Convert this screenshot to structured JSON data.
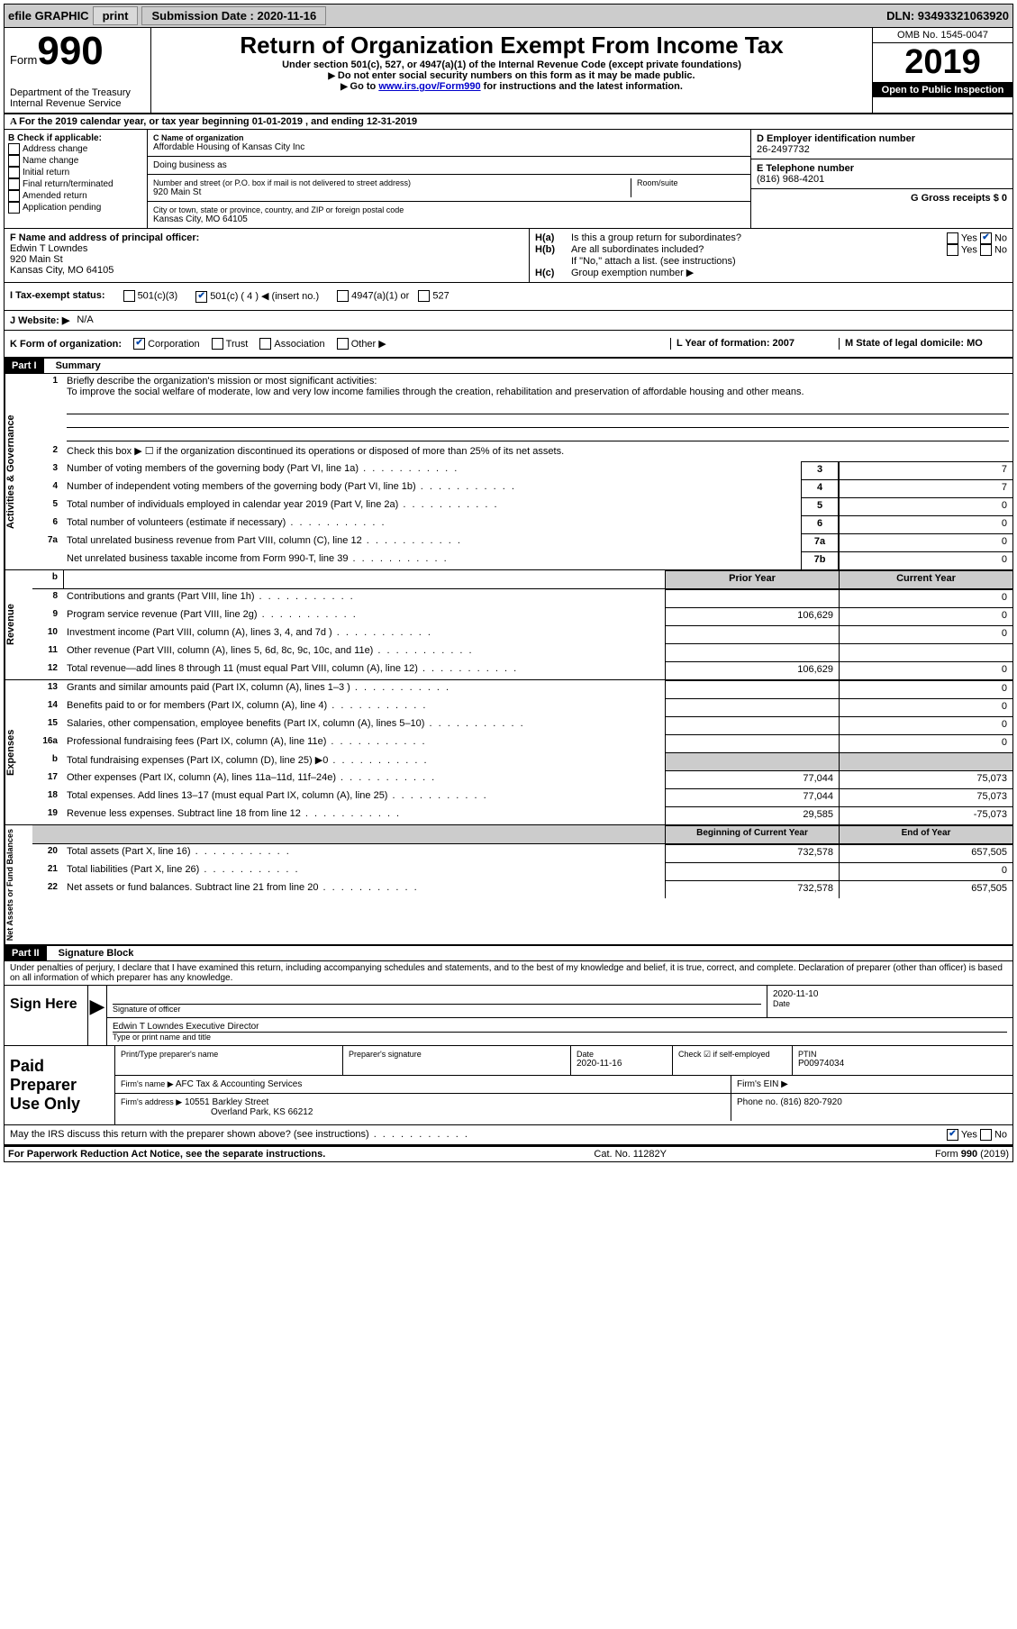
{
  "topbar": {
    "efile_label": "efile GRAPHIC",
    "print_btn": "print",
    "submission_label": "Submission Date : 2020-11-16",
    "dln_label": "DLN: 93493321063920"
  },
  "header": {
    "form_word": "Form",
    "form_number": "990",
    "dept": "Department of the Treasury\nInternal Revenue Service",
    "title": "Return of Organization Exempt From Income Tax",
    "subtitle": "Under section 501(c), 527, or 4947(a)(1) of the Internal Revenue Code (except private foundations)",
    "note1": "Do not enter social security numbers on this form as it may be made public.",
    "note2_pre": "Go to ",
    "note2_link": "www.irs.gov/Form990",
    "note2_post": " for instructions and the latest information.",
    "omb": "OMB No. 1545-0047",
    "year": "2019",
    "open": "Open to Public Inspection"
  },
  "section_a": "For the 2019 calendar year, or tax year beginning 01-01-2019    , and ending 12-31-2019",
  "section_b": {
    "header": "B Check if applicable:",
    "items": [
      "Address change",
      "Name change",
      "Initial return",
      "Final return/terminated",
      "Amended return",
      "Application pending"
    ]
  },
  "section_c": {
    "name_label": "C Name of organization",
    "name_value": "Affordable Housing of Kansas City Inc",
    "dba_label": "Doing business as",
    "street_label": "Number and street (or P.O. box if mail is not delivered to street address)",
    "street_value": "920 Main St",
    "room_label": "Room/suite",
    "city_label": "City or town, state or province, country, and ZIP or foreign postal code",
    "city_value": "Kansas City, MO  64105"
  },
  "section_d": {
    "ein_label": "D Employer identification number",
    "ein_value": "26-2497732",
    "phone_label": "E Telephone number",
    "phone_value": "(816) 968-4201",
    "gross_label": "G Gross receipts $ 0"
  },
  "section_f": {
    "label": "F  Name and address of principal officer:",
    "name": "Edwin T Lowndes",
    "street": "920 Main St",
    "city": "Kansas City, MO  64105"
  },
  "section_h": {
    "ha_label": "H(a)",
    "ha_text": "Is this a group return for subordinates?",
    "hb_label": "H(b)",
    "hb_text": "Are all subordinates included?",
    "hb_note": "If \"No,\" attach a list. (see instructions)",
    "hc_label": "H(c)",
    "hc_text": "Group exemption number",
    "yes": "Yes",
    "no": "No"
  },
  "section_i": {
    "label": "I  Tax-exempt status:",
    "opts": [
      "501(c)(3)",
      "501(c) ( 4 ) ◀ (insert no.)",
      "4947(a)(1) or",
      "527"
    ]
  },
  "section_j": {
    "label": "J   Website: ▶",
    "value": "N/A"
  },
  "section_k": {
    "label": "K Form of organization:",
    "opts": [
      "Corporation",
      "Trust",
      "Association",
      "Other"
    ]
  },
  "section_l": {
    "label": "L Year of formation: 2007"
  },
  "section_m": {
    "label": "M State of legal domicile: MO"
  },
  "part1": {
    "header": "Part I",
    "title": "Summary"
  },
  "activities": {
    "side": "Activities & Governance",
    "line1_desc": "Briefly describe the organization's mission or most significant activities:",
    "line1_text": "To improve the social welfare of moderate, low and very low income families through the creation, rehabilitation and preservation of affordable housing and other means.",
    "line2_desc": "Check this box ▶ ☐  if the organization discontinued its operations or disposed of more than 25% of its net assets.",
    "rows": [
      {
        "n": "3",
        "desc": "Number of voting members of the governing body (Part VI, line 1a)",
        "box": "3",
        "val": "7"
      },
      {
        "n": "4",
        "desc": "Number of independent voting members of the governing body (Part VI, line 1b)",
        "box": "4",
        "val": "7"
      },
      {
        "n": "5",
        "desc": "Total number of individuals employed in calendar year 2019 (Part V, line 2a)",
        "box": "5",
        "val": "0"
      },
      {
        "n": "6",
        "desc": "Total number of volunteers (estimate if necessary)",
        "box": "6",
        "val": "0"
      },
      {
        "n": "7a",
        "desc": "Total unrelated business revenue from Part VIII, column (C), line 12",
        "box": "7a",
        "val": "0"
      },
      {
        "n": "",
        "desc": "Net unrelated business taxable income from Form 990-T, line 39",
        "box": "7b",
        "val": "0"
      }
    ]
  },
  "revenue": {
    "side": "Revenue",
    "col1": "Prior Year",
    "col2": "Current Year",
    "rows": [
      {
        "n": "8",
        "desc": "Contributions and grants (Part VIII, line 1h)",
        "v1": "",
        "v2": "0"
      },
      {
        "n": "9",
        "desc": "Program service revenue (Part VIII, line 2g)",
        "v1": "106,629",
        "v2": "0"
      },
      {
        "n": "10",
        "desc": "Investment income (Part VIII, column (A), lines 3, 4, and 7d )",
        "v1": "",
        "v2": "0"
      },
      {
        "n": "11",
        "desc": "Other revenue (Part VIII, column (A), lines 5, 6d, 8c, 9c, 10c, and 11e)",
        "v1": "",
        "v2": ""
      },
      {
        "n": "12",
        "desc": "Total revenue—add lines 8 through 11 (must equal Part VIII, column (A), line 12)",
        "v1": "106,629",
        "v2": "0"
      }
    ]
  },
  "expenses": {
    "side": "Expenses",
    "rows": [
      {
        "n": "13",
        "desc": "Grants and similar amounts paid (Part IX, column (A), lines 1–3 )",
        "v1": "",
        "v2": "0"
      },
      {
        "n": "14",
        "desc": "Benefits paid to or for members (Part IX, column (A), line 4)",
        "v1": "",
        "v2": "0"
      },
      {
        "n": "15",
        "desc": "Salaries, other compensation, employee benefits (Part IX, column (A), lines 5–10)",
        "v1": "",
        "v2": "0"
      },
      {
        "n": "16a",
        "desc": "Professional fundraising fees (Part IX, column (A), line 11e)",
        "v1": "",
        "v2": "0"
      },
      {
        "n": "b",
        "desc": "Total fundraising expenses (Part IX, column (D), line 25) ▶0",
        "v1": "grey",
        "v2": "grey"
      },
      {
        "n": "17",
        "desc": "Other expenses (Part IX, column (A), lines 11a–11d, 11f–24e)",
        "v1": "77,044",
        "v2": "75,073"
      },
      {
        "n": "18",
        "desc": "Total expenses. Add lines 13–17 (must equal Part IX, column (A), line 25)",
        "v1": "77,044",
        "v2": "75,073"
      },
      {
        "n": "19",
        "desc": "Revenue less expenses. Subtract line 18 from line 12",
        "v1": "29,585",
        "v2": "-75,073"
      }
    ]
  },
  "netassets": {
    "side": "Net Assets or Fund Balances",
    "col1": "Beginning of Current Year",
    "col2": "End of Year",
    "rows": [
      {
        "n": "20",
        "desc": "Total assets (Part X, line 16)",
        "v1": "732,578",
        "v2": "657,505"
      },
      {
        "n": "21",
        "desc": "Total liabilities (Part X, line 26)",
        "v1": "",
        "v2": "0"
      },
      {
        "n": "22",
        "desc": "Net assets or fund balances. Subtract line 21 from line 20",
        "v1": "732,578",
        "v2": "657,505"
      }
    ]
  },
  "part2": {
    "header": "Part II",
    "title": "Signature Block",
    "penalty": "Under penalties of perjury, I declare that I have examined this return, including accompanying schedules and statements, and to the best of my knowledge and belief, it is true, correct, and complete. Declaration of preparer (other than officer) is based on all information of which preparer has any knowledge."
  },
  "sign": {
    "label": "Sign Here",
    "sig_label": "Signature of officer",
    "date_label": "Date",
    "date_value": "2020-11-10",
    "name": "Edwin T Lowndes  Executive Director",
    "name_label": "Type or print name and title"
  },
  "preparer": {
    "label": "Paid Preparer Use Only",
    "print_label": "Print/Type preparer's name",
    "sig_label": "Preparer's signature",
    "date_label": "Date",
    "date_value": "2020-11-16",
    "check_label": "Check ☑ if self-employed",
    "ptin_label": "PTIN",
    "ptin_value": "P00974034",
    "firm_name_label": "Firm's name    ▶",
    "firm_name": "AFC Tax & Accounting Services",
    "firm_ein_label": "Firm's EIN ▶",
    "firm_addr_label": "Firm's address ▶",
    "firm_addr1": "10551 Barkley Street",
    "firm_addr2": "Overland Park, KS  66212",
    "phone_label": "Phone no. (816) 820-7920"
  },
  "discuss": "May the IRS discuss this return with the preparer shown above? (see instructions)",
  "footer": {
    "left": "For Paperwork Reduction Act Notice, see the separate instructions.",
    "center": "Cat. No. 11282Y",
    "right": "Form 990 (2019)"
  }
}
